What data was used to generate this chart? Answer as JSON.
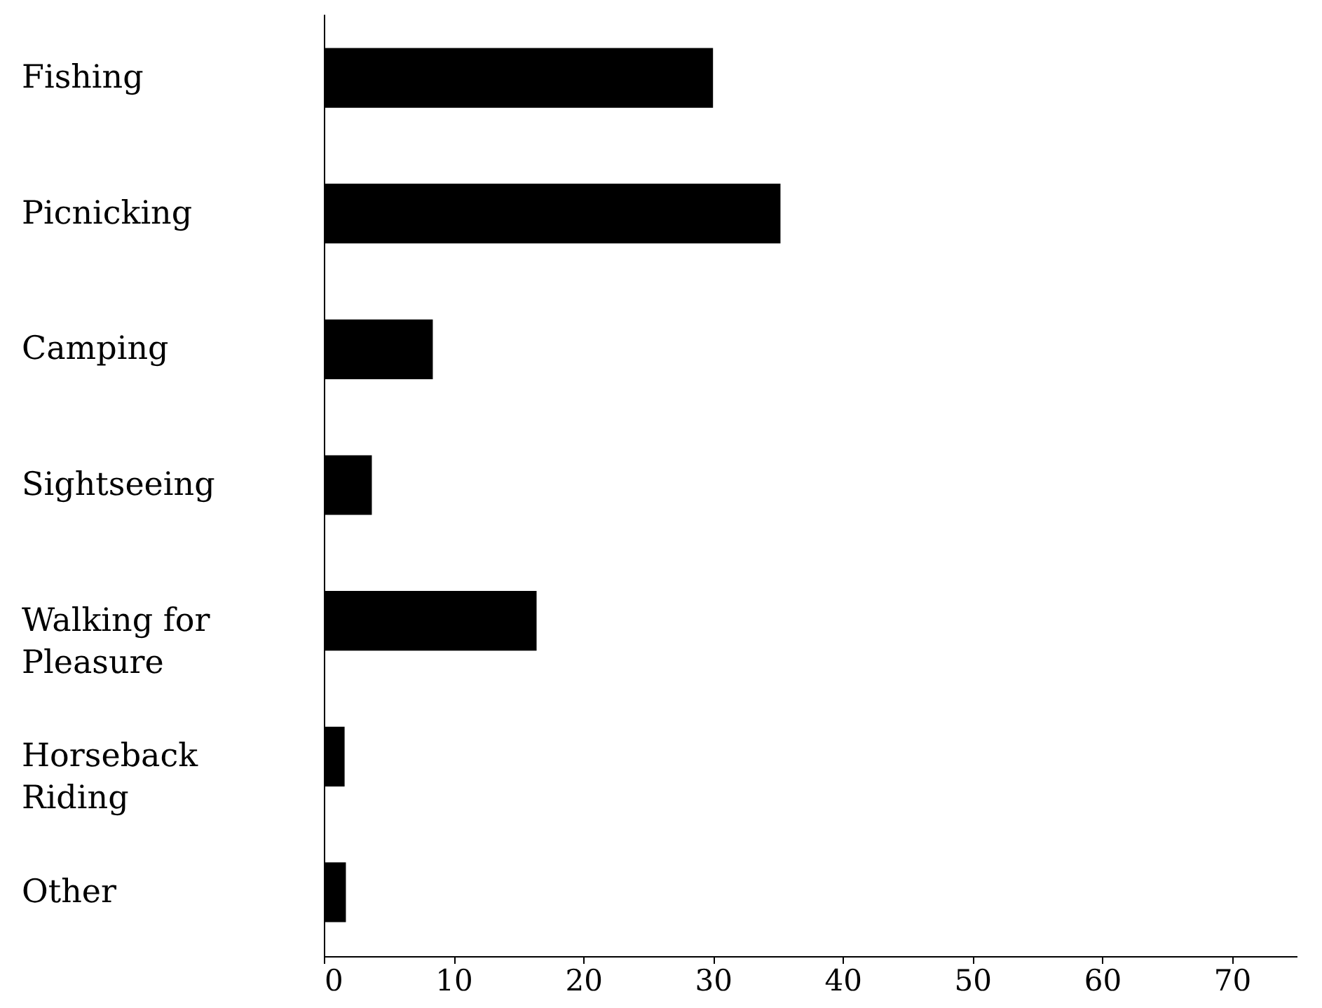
{
  "chart_data": {
    "type": "bar",
    "orientation": "horizontal",
    "categories": [
      "Fishing",
      "Picnicking",
      "Camping",
      "Sightseeing",
      "Walking for Pleasure",
      "Horseback Riding",
      "Other"
    ],
    "values": [
      30,
      35.2,
      8.4,
      3.7,
      16.4,
      1.6,
      1.7
    ],
    "color": "#000000",
    "xlim": [
      0,
      75
    ],
    "xticks": [
      0,
      10,
      20,
      30,
      40,
      50,
      60,
      70
    ],
    "grid": false
  }
}
